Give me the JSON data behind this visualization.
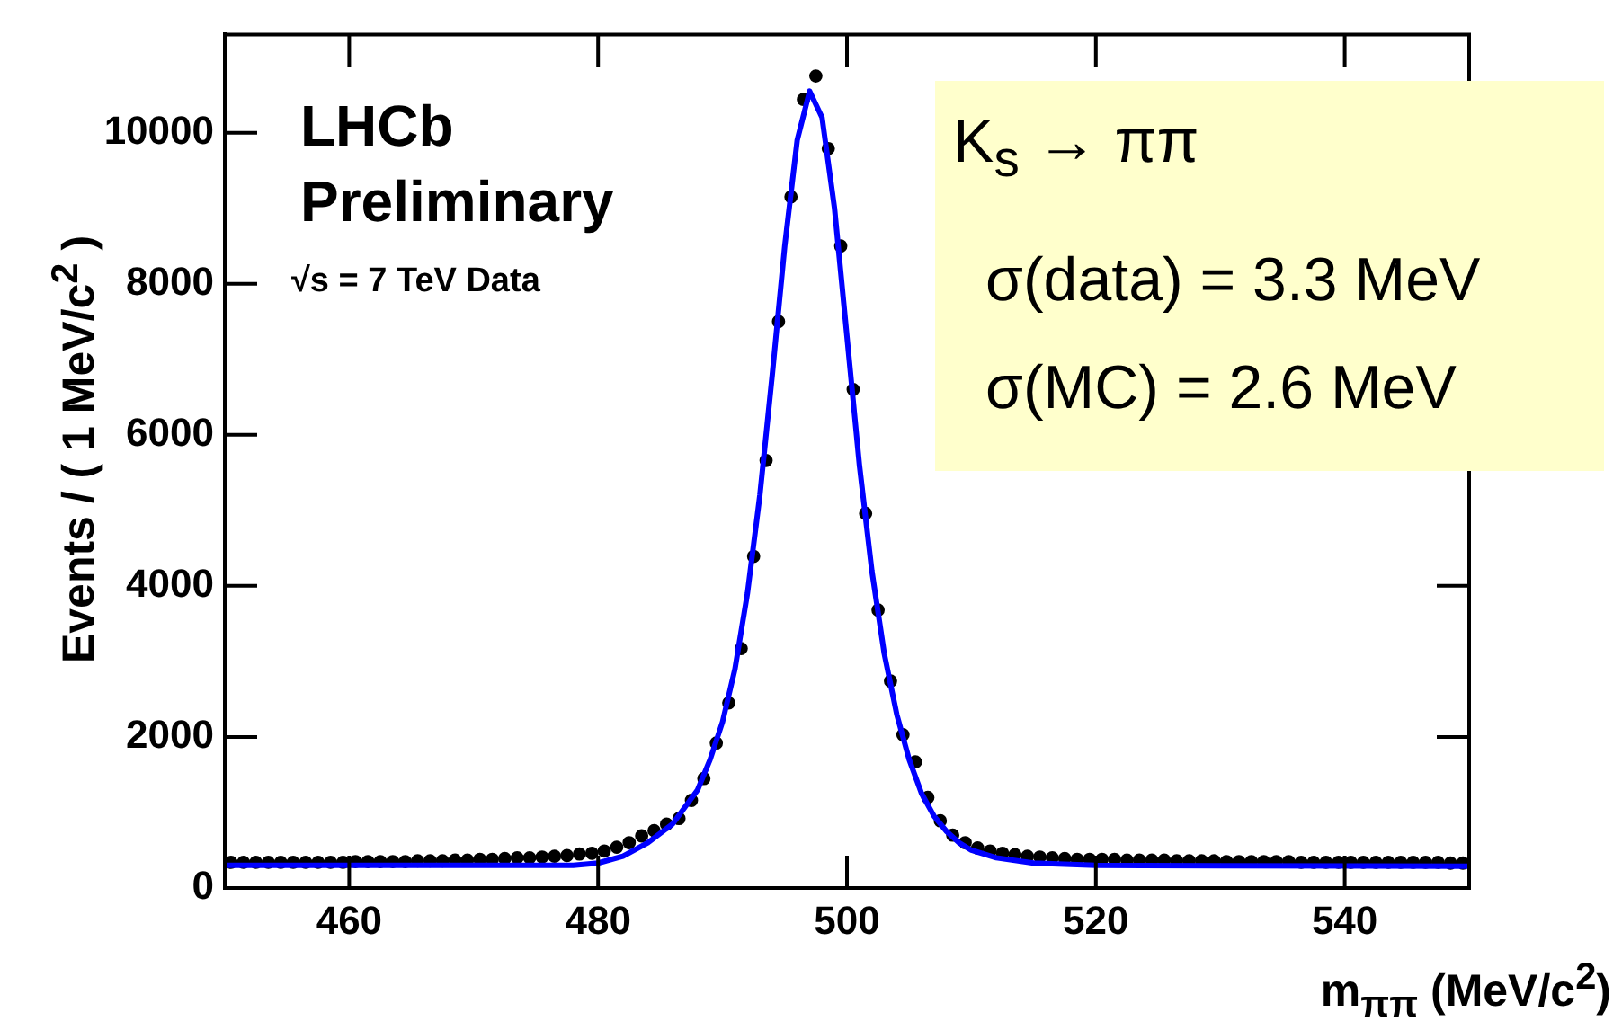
{
  "chart_data": {
    "type": "scatter",
    "xlabel": "m$_{ππ}$ (MeV/c$^{2}$)",
    "ylabel": "Events / ( 1 MeV/c$^{2}$ )",
    "annotations": [
      "LHCb",
      "Preliminary",
      "√s = 7 TeV Data",
      "K$_{s}$ → ππ",
      "σ(data) = 3.3 MeV",
      "σ(MC) = 2.6 MeV"
    ],
    "xlim": [
      450,
      550
    ],
    "xticks": [
      460,
      480,
      500,
      520,
      540
    ],
    "ylim": [
      0,
      11300
    ],
    "yticks": [
      0,
      2000,
      4000,
      6000,
      8000,
      10000
    ],
    "legend": false,
    "series": [
      {
        "color": "#000000",
        "marker": "circle",
        "x": [
          450.5,
          451.5,
          452.5,
          453.5,
          454.5,
          455.5,
          456.5,
          457.5,
          458.5,
          459.5,
          460.5,
          461.5,
          462.5,
          463.5,
          464.5,
          465.5,
          466.5,
          467.5,
          468.5,
          469.5,
          470.5,
          471.5,
          472.5,
          473.5,
          474.5,
          475.5,
          476.5,
          477.5,
          478.5,
          479.5,
          480.5,
          481.5,
          482.5,
          483.5,
          484.5,
          485.5,
          486.5,
          487.5,
          488.5,
          489.5,
          490.5,
          491.5,
          492.5,
          493.5,
          494.5,
          495.5,
          496.5,
          497.5,
          498.5,
          499.5,
          500.5,
          501.5,
          502.5,
          503.5,
          504.5,
          505.5,
          506.5,
          507.5,
          508.5,
          509.5,
          510.5,
          511.5,
          512.5,
          513.5,
          514.5,
          515.5,
          516.5,
          517.5,
          518.5,
          519.5,
          520.5,
          521.5,
          522.5,
          523.5,
          524.5,
          525.5,
          526.5,
          527.5,
          528.5,
          529.5,
          530.5,
          531.5,
          532.5,
          533.5,
          534.5,
          535.5,
          536.5,
          537.5,
          538.5,
          539.5,
          540.5,
          541.5,
          542.5,
          543.5,
          544.5,
          545.5,
          546.5,
          547.5,
          548.5,
          549.5
        ],
        "values": [
          340,
          340,
          340,
          340,
          340,
          340,
          340,
          340,
          340,
          340,
          350,
          350,
          350,
          350,
          350,
          360,
          360,
          360,
          370,
          370,
          380,
          380,
          390,
          400,
          400,
          410,
          420,
          430,
          450,
          460,
          490,
          540,
          600,
          690,
          760,
          845,
          920,
          1160,
          1450,
          1920,
          2450,
          3170,
          4390,
          5660,
          7500,
          9150,
          10440,
          10750,
          9790,
          8500,
          6600,
          4960,
          3680,
          2740,
          2030,
          1670,
          1200,
          890,
          700,
          600,
          530,
          490,
          460,
          440,
          420,
          410,
          400,
          390,
          380,
          380,
          380,
          380,
          370,
          370,
          370,
          370,
          360,
          360,
          360,
          360,
          350,
          350,
          350,
          350,
          350,
          350,
          340,
          340,
          340,
          340,
          340,
          340,
          340,
          340,
          340,
          340,
          340,
          340,
          330,
          330
        ]
      },
      {
        "type": "line",
        "color": "#0000ff",
        "marker": "none",
        "line_style": "solid",
        "x": [
          450,
          460,
          470,
          478,
          480,
          482,
          484,
          486,
          488,
          489,
          490,
          491,
          492,
          493,
          494,
          495,
          496,
          497,
          498,
          499,
          500,
          501,
          502,
          503,
          504,
          505,
          506,
          507,
          508,
          509,
          510,
          512,
          515,
          520,
          530,
          550
        ],
        "values": [
          300,
          300,
          300,
          300,
          330,
          420,
          600,
          850,
          1300,
          1700,
          2200,
          2900,
          3900,
          5200,
          6800,
          8500,
          9900,
          10550,
          10200,
          9000,
          7300,
          5600,
          4200,
          3100,
          2300,
          1700,
          1250,
          950,
          750,
          600,
          500,
          400,
          330,
          300,
          295,
          290
        ]
      }
    ]
  }
}
